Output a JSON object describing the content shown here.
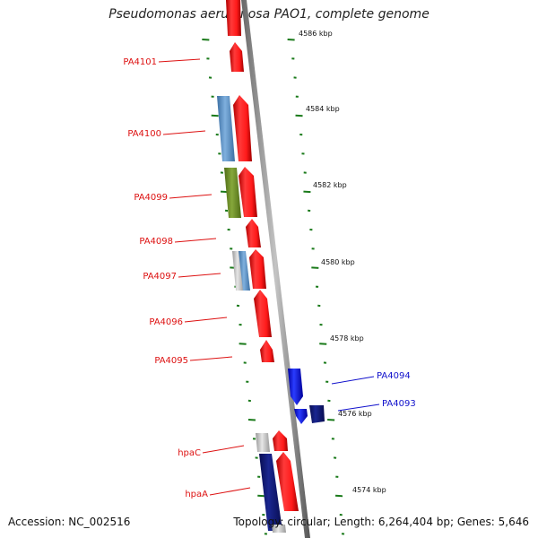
{
  "title": "Pseudomonas aeruginosa PAO1, complete genome",
  "footer": {
    "accession": "Accession: NC_002516",
    "summary": "Topology: circular; Length: 6,264,404 bp; Genes: 5,646"
  },
  "ruler_labels": [
    "4586 kbp",
    "4584 kbp",
    "4582 kbp",
    "4580 kbp",
    "4578 kbp",
    "4576 kbp",
    "4574 kbp"
  ],
  "gene_labels": [
    {
      "text": "PA4101",
      "color": "#dd1111"
    },
    {
      "text": "PA4100",
      "color": "#dd1111"
    },
    {
      "text": "PA4099",
      "color": "#dd1111"
    },
    {
      "text": "PA4098",
      "color": "#dd1111"
    },
    {
      "text": "PA4097",
      "color": "#dd1111"
    },
    {
      "text": "PA4096",
      "color": "#dd1111"
    },
    {
      "text": "PA4095",
      "color": "#dd1111"
    },
    {
      "text": "PA4094",
      "color": "#1111cc"
    },
    {
      "text": "PA4093",
      "color": "#1111cc"
    },
    {
      "text": "hpaC",
      "color": "#dd1111"
    },
    {
      "text": "hpaA",
      "color": "#dd1111"
    }
  ],
  "colors": {
    "forward_gene": "#ff2020",
    "reverse_gene": "#1020ee",
    "reverse_gene_dark": "#101a7a",
    "steelblue_gene": "#5b8fc2",
    "olive_gene": "#6f8f2a",
    "grey_gene": "#c8c8c8",
    "tick": "#1a7a1a",
    "backbone": "#888888"
  }
}
